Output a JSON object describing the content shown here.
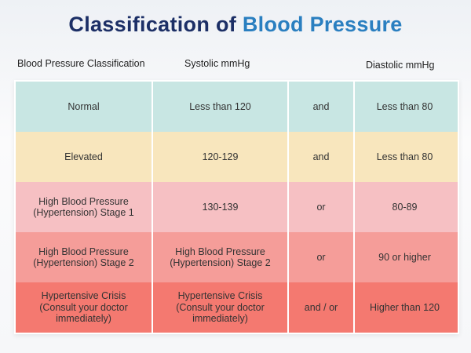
{
  "title": {
    "part1": "Classification of ",
    "part2": "Blood Pressure"
  },
  "headers": [
    "Blood Pressure Classification",
    "Systolic mmHg",
    "Diastolic mmHg"
  ],
  "colors": {
    "title": "#1c2f66",
    "accent": "#2a7fc0"
  },
  "rows": [
    {
      "cells": [
        "Normal",
        "Less than 120",
        "and",
        "Less than 80"
      ],
      "color": "#c8e6e3"
    },
    {
      "cells": [
        "Elevated",
        "120-129",
        "and",
        "Less than 80"
      ],
      "color": "#f8e6bd"
    },
    {
      "cells": [
        "High Blood Pressure\n(Hypertension) Stage 1",
        "130-139",
        "or",
        "80-89"
      ],
      "color": "#f6c0c3"
    },
    {
      "cells": [
        "High Blood Pressure\n(Hypertension) Stage 2",
        "High Blood Pressure\n(Hypertension) Stage 2",
        "or",
        "90 or higher"
      ],
      "color": "#f59d99"
    },
    {
      "cells": [
        "Hypertensive Crisis\n(Consult your doctor\nimmediately)",
        "Hypertensive Crisis\n(Consult your doctor\nimmediately)",
        "and / or",
        "Higher than 120"
      ],
      "color": "#f47970"
    }
  ]
}
